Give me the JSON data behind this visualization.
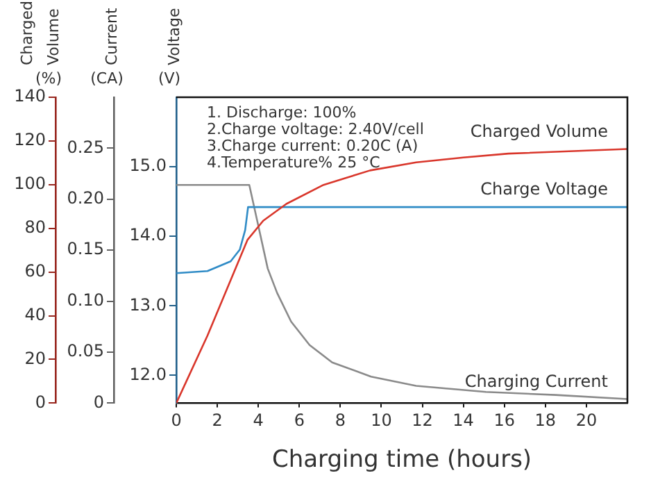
{
  "chart_data": {
    "type": "line",
    "xlabel": "Charging time (hours)",
    "ylabel": "Voltage (V)",
    "y2label": "Current (CA)",
    "y3label": "Charged Volume (%)",
    "annotations": [
      "1. Discharge: 100%",
      "2.Charge voltage: 2.40V/cell",
      "3.Charge current: 0.20C (A)",
      "4.Temperature% 25 °C"
    ],
    "xlim": [
      0,
      22
    ],
    "xticks": [
      0,
      2,
      4,
      6,
      8,
      10,
      12,
      14,
      16,
      18,
      20
    ],
    "ylim": [
      11.6,
      16
    ],
    "yticks": [
      {
        "value": 12,
        "label": "12.0"
      },
      {
        "value": 13,
        "label": "13.0"
      },
      {
        "value": 14,
        "label": "14.0"
      },
      {
        "value": 15,
        "label": "15.0"
      }
    ],
    "y2lim": [
      0,
      0.3
    ],
    "y2ticks": [
      0,
      0.05,
      {
        "value": 0.1,
        "label": "0.10"
      },
      0.15,
      {
        "value": 0.2,
        "label": "0.20"
      },
      0.25
    ],
    "y3lim": [
      0,
      140
    ],
    "y3ticks": [
      0,
      20,
      40,
      60,
      80,
      100,
      120,
      140
    ],
    "grid": false,
    "legend": false,
    "marker": "none",
    "line_style": "solid",
    "series": [
      {
        "name": "Charged Volume",
        "color": "#d9362b",
        "axis": "y3",
        "x": [
          0,
          1.52,
          3.47,
          4.24,
          5.37,
          7.18,
          9.45,
          11.7,
          14.0,
          16.2,
          22
        ],
        "values": [
          0,
          30.9,
          74.7,
          83.5,
          91.2,
          99.9,
          106.5,
          110.2,
          112.4,
          114.2,
          116.3
        ]
      },
      {
        "name": "Charge Voltage",
        "color": "#2f8bc6",
        "axis": "y",
        "x": [
          0,
          1.52,
          2.65,
          3.1,
          3.36,
          3.5,
          22
        ],
        "values": [
          13.47,
          13.5,
          13.64,
          13.81,
          14.09,
          14.42,
          14.42
        ]
      },
      {
        "name": "Charging Current",
        "color": "#8a8a8a",
        "axis": "y2",
        "x": [
          0,
          3.56,
          4.0,
          4.46,
          4.92,
          5.6,
          6.5,
          7.6,
          9.5,
          11.7,
          15.1,
          18.5,
          22
        ],
        "values": [
          0.214,
          0.214,
          0.174,
          0.132,
          0.108,
          0.08,
          0.057,
          0.04,
          0.026,
          0.017,
          0.011,
          0.008,
          0.004
        ]
      }
    ]
  }
}
